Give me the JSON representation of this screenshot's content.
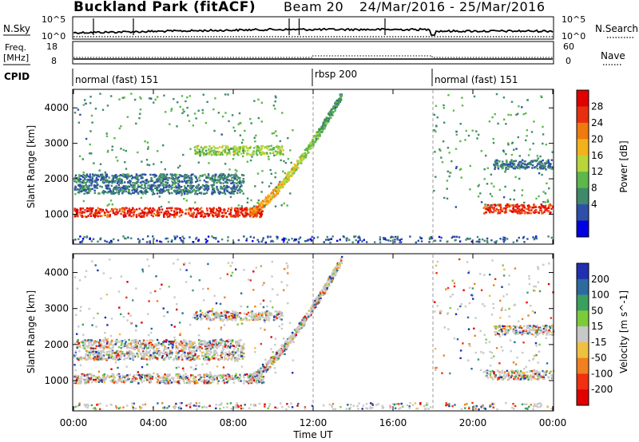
{
  "header": {
    "title": "Buckland Park (fitACF)",
    "beam": "Beam 20",
    "date_range": "24/Mar/2016 - 25/Mar/2016"
  },
  "status_panels": {
    "nsky_label": "N.Sky",
    "nsky_ticks": [
      "10^5",
      "10^0"
    ],
    "nsearch_label": "N.Search",
    "nsearch_ticks": [
      "10^5",
      "10^0"
    ],
    "freq_label_line1": "Freq.",
    "freq_label_line2": "[MHz]",
    "freq_ticks": [
      "18",
      "8"
    ],
    "nave_label": "Nave",
    "nave_ticks": [
      "60",
      "0"
    ],
    "cpid_label": "CPID",
    "cpid_segments": [
      {
        "label": "normal (fast) 151",
        "start_hour": 0
      },
      {
        "label": "rbsp 200",
        "start_hour": 12
      },
      {
        "label": "normal (fast) 151",
        "start_hour": 18
      }
    ]
  },
  "chart_data": [
    {
      "type": "heatmap",
      "title": "",
      "xlabel": "Time UT",
      "ylabel": "Slant Range [km]",
      "x_ticks": [
        "00:00",
        "04:00",
        "08:00",
        "12:00",
        "16:00",
        "20:00",
        "00:00"
      ],
      "xlim_hours": [
        0,
        24
      ],
      "y_ticks": [
        1000,
        2000,
        3000,
        4000
      ],
      "ylim_km": [
        180,
        4500
      ],
      "colorbar": {
        "label": "Power [dB]",
        "ticks": [
          4,
          8,
          12,
          16,
          20,
          24,
          28
        ],
        "range": [
          0,
          30
        ],
        "colors": [
          "#0000e0",
          "#2d4fa8",
          "#3f8a6a",
          "#5cb84a",
          "#b8d63a",
          "#f2b21c",
          "#f07a10",
          "#e83010",
          "#e00000"
        ]
      },
      "bands": [
        {
          "range_km": 1050,
          "start_hour": 0,
          "end_hour": 9.5,
          "level": "high"
        },
        {
          "range_km": 2000,
          "start_hour": 0,
          "end_hour": 8.5,
          "level": "low"
        },
        {
          "range_km": 1700,
          "start_hour": 0,
          "end_hour": 8.5,
          "level": "low"
        },
        {
          "range_km": 2800,
          "start_hour": 6,
          "end_hour": 10.5,
          "level": "mid"
        },
        {
          "range_km": 1150,
          "start_hour": 20.5,
          "end_hour": 24,
          "level": "high"
        },
        {
          "range_km": 2400,
          "start_hour": 21,
          "end_hour": 24,
          "level": "low"
        }
      ]
    },
    {
      "type": "heatmap",
      "title": "",
      "xlabel": "Time UT",
      "ylabel": "Slant Range [km]",
      "x_ticks": [
        "00:00",
        "04:00",
        "08:00",
        "12:00",
        "16:00",
        "20:00",
        "00:00"
      ],
      "xlim_hours": [
        0,
        24
      ],
      "y_ticks": [
        1000,
        2000,
        3000,
        4000
      ],
      "ylim_km": [
        180,
        4500
      ],
      "colorbar": {
        "label": "Velocity [m s^-1]",
        "ticks": [
          200,
          100,
          50,
          15,
          -15,
          -50,
          -100,
          -200
        ],
        "range": [
          -250,
          250
        ],
        "colors": [
          "#2030b0",
          "#2d6aa0",
          "#3aa060",
          "#7ccc3a",
          "#c8c8c8",
          "#f0c040",
          "#f08020",
          "#f03010",
          "#e00000"
        ]
      }
    }
  ]
}
